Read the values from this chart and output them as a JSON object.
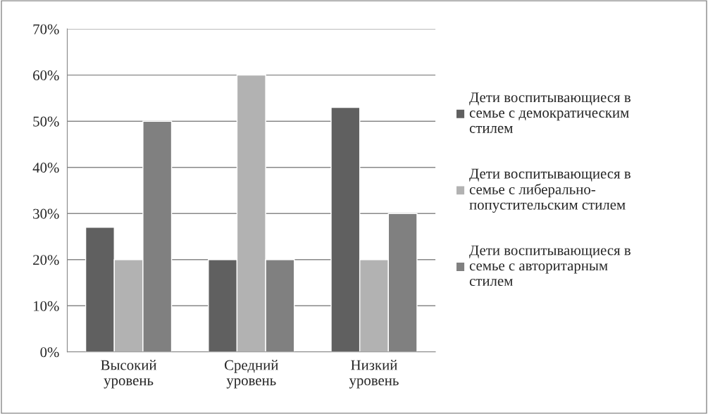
{
  "chart_data": {
    "type": "bar",
    "categories": [
      "Высокий\nуровень",
      "Средний\nуровень",
      "Низкий\nуровень"
    ],
    "series": [
      {
        "name": "Дети воспитывающиеся в\nсемье с демократическим\nстилем",
        "color": "#606060",
        "values": [
          27,
          20,
          53
        ]
      },
      {
        "name": "Дети воспитывающиеся в\nсемье с либерально-\nпопустительским стилем",
        "color": "#b2b2b2",
        "values": [
          20,
          60,
          20
        ]
      },
      {
        "name": "Дети воспитывающиеся в\nсемье с авторитарным\nстилем",
        "color": "#808080",
        "values": [
          50,
          20,
          30
        ]
      }
    ],
    "ylim": [
      0,
      70
    ],
    "yticks": [
      {
        "value": 0,
        "label": "0%"
      },
      {
        "value": 10,
        "label": "10%"
      },
      {
        "value": 20,
        "label": "20%"
      },
      {
        "value": 30,
        "label": "30%"
      },
      {
        "value": 40,
        "label": "40%"
      },
      {
        "value": 50,
        "label": "50%"
      },
      {
        "value": 60,
        "label": "60%"
      },
      {
        "value": 70,
        "label": "70%"
      }
    ],
    "grid": "y",
    "legend": "right"
  }
}
